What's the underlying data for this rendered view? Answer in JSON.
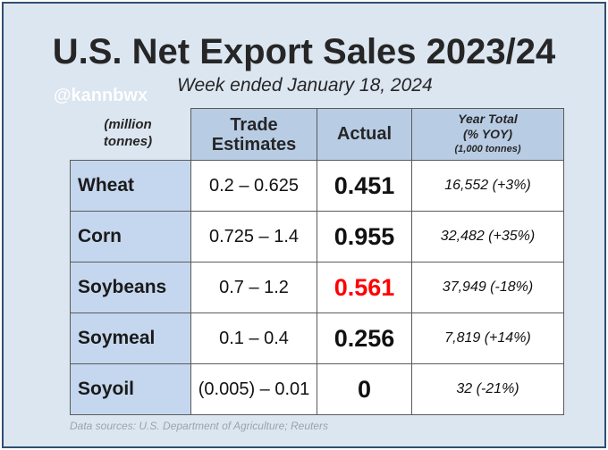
{
  "header": {
    "title": "U.S. Net Export Sales 2023/24",
    "subtitle": "Week ended January 18, 2024",
    "watermark": "@kannbwx"
  },
  "table": {
    "units_line1": "(million",
    "units_line2": "tonnes)",
    "columns": {
      "estimates_line1": "Trade",
      "estimates_line2": "Estimates",
      "actual": "Actual",
      "year_line1": "Year Total",
      "year_line2": "(% YOY)",
      "year_line3": "(1,000 tonnes)"
    },
    "rows": [
      {
        "commodity": "Wheat",
        "estimates": "0.2 – 0.625",
        "actual": "0.451",
        "year_total": "16,552  (+3%)",
        "actual_color": "#111111"
      },
      {
        "commodity": "Corn",
        "estimates": "0.725 – 1.4",
        "actual": "0.955",
        "year_total": "32,482  (+35%)",
        "actual_color": "#111111"
      },
      {
        "commodity": "Soybeans",
        "estimates": "0.7 – 1.2",
        "actual": "0.561",
        "year_total": "37,949  (-18%)",
        "actual_color": "#ff0000"
      },
      {
        "commodity": "Soymeal",
        "estimates": "0.1 – 0.4",
        "actual": "0.256",
        "year_total": "7,819  (+14%)",
        "actual_color": "#111111"
      },
      {
        "commodity": "Soyoil",
        "estimates": "(0.005) – 0.01",
        "actual": "0",
        "year_total": "32  (-21%)",
        "actual_color": "#111111"
      }
    ]
  },
  "footer": {
    "sources": "Data sources: U.S. Department of Agriculture; Reuters"
  }
}
